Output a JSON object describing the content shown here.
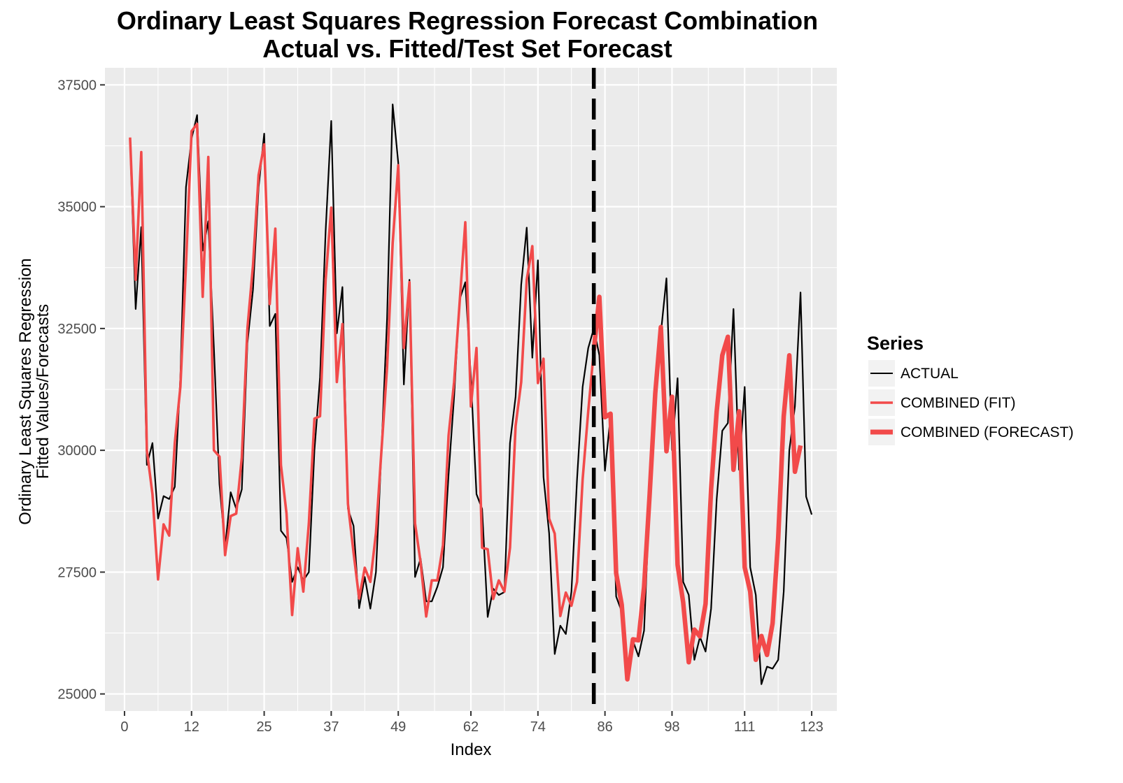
{
  "chart_data": {
    "type": "line",
    "title": "Ordinary Least Squares Regression Forecast Combination",
    "subtitle": "Actual vs. Fitted/Test Set Forecast",
    "xlabel": "Index",
    "ylabel": [
      "Ordinary Least Squares Regression",
      "Fitted Values/Forecasts"
    ],
    "xlim": [
      -3.5,
      127.5
    ],
    "ylim": [
      24650,
      37850
    ],
    "x_ticks": [
      0,
      12,
      25,
      37,
      49,
      62,
      74,
      86,
      98,
      111,
      123
    ],
    "y_ticks": [
      25000,
      27500,
      30000,
      32500,
      35000,
      37500
    ],
    "grid": true,
    "legend_position": "right",
    "legend_title": "Series",
    "vline": {
      "x": 84,
      "style": "dashed",
      "color": "#000000"
    },
    "colors": {
      "actual": "#000000",
      "fit": "#f24a4a",
      "forecast": "#f24a4a",
      "panel": "#ebebeb",
      "grid": "#ffffff"
    },
    "series": [
      {
        "name": "ACTUAL",
        "x_start": 1,
        "values": [
          36350,
          32900,
          34580,
          29700,
          30150,
          28600,
          29060,
          29000,
          29250,
          31500,
          35400,
          36400,
          36880,
          34100,
          34700,
          32100,
          29300,
          28000,
          29140,
          28800,
          29200,
          32200,
          33300,
          35400,
          36500,
          32550,
          32800,
          28350,
          28200,
          27300,
          27600,
          27330,
          27500,
          30000,
          31500,
          34500,
          36760,
          32400,
          33350,
          28800,
          28450,
          26760,
          27400,
          26750,
          27500,
          30000,
          32700,
          37100,
          35900,
          31350,
          33500,
          27400,
          27780,
          26900,
          26900,
          27200,
          27600,
          29500,
          31100,
          33100,
          33450,
          31500,
          29100,
          28800,
          26580,
          27160,
          27030,
          27090,
          30150,
          31100,
          33400,
          34570,
          31900,
          33900,
          29450,
          28300,
          25820,
          26400,
          26230,
          27100,
          29400,
          31300,
          32100,
          32500,
          31950,
          29580,
          30700,
          27000,
          26690,
          25400,
          26090,
          25770,
          26300,
          29000,
          31000,
          32400,
          33530,
          30000,
          31480,
          27300,
          27030,
          25700,
          26170,
          25870,
          26750,
          29000,
          30400,
          30560,
          32900,
          29600,
          31300,
          27600,
          27030,
          25200,
          25560,
          25520,
          25700,
          27100,
          30000,
          30900,
          33240,
          29050,
          28680
        ]
      },
      {
        "name": "COMBINED (FIT)",
        "x_start": 1,
        "values": [
          36420,
          33500,
          36120,
          30000,
          29100,
          27350,
          28480,
          28250,
          30150,
          31300,
          33800,
          36550,
          36700,
          33150,
          36020,
          30000,
          29870,
          27850,
          28650,
          28700,
          29850,
          32500,
          33800,
          35650,
          36280,
          33000,
          34550,
          29700,
          28700,
          26620,
          27990,
          27100,
          28500,
          30650,
          30700,
          33500,
          34980,
          31400,
          32590,
          28900,
          27900,
          26960,
          27590,
          27300,
          28300,
          30000,
          31700,
          34250,
          35850,
          32100,
          33450,
          28500,
          27700,
          26590,
          27330,
          27330,
          28050,
          30300,
          31400,
          33050,
          34680,
          30900,
          32100,
          28000,
          27970,
          26950,
          27330,
          27100,
          28000,
          30500,
          31400,
          33500,
          34190,
          31380,
          31880,
          28600,
          28290,
          26600,
          27080,
          26810,
          27300,
          29400,
          30800,
          32050
        ]
      },
      {
        "name": "COMBINED (FORECAST)",
        "x_start": 84,
        "values": [
          32050,
          33150,
          30680,
          30750,
          27480,
          26830,
          25300,
          26120,
          26100,
          27200,
          29100,
          31170,
          32530,
          29980,
          31100,
          27650,
          26880,
          25650,
          26320,
          26180,
          26850,
          29200,
          30800,
          31950,
          32330,
          29600,
          30800,
          27600,
          27100,
          25700,
          26190,
          25800,
          26450,
          28200,
          30700,
          31950,
          29560,
          30100
        ]
      }
    ]
  }
}
